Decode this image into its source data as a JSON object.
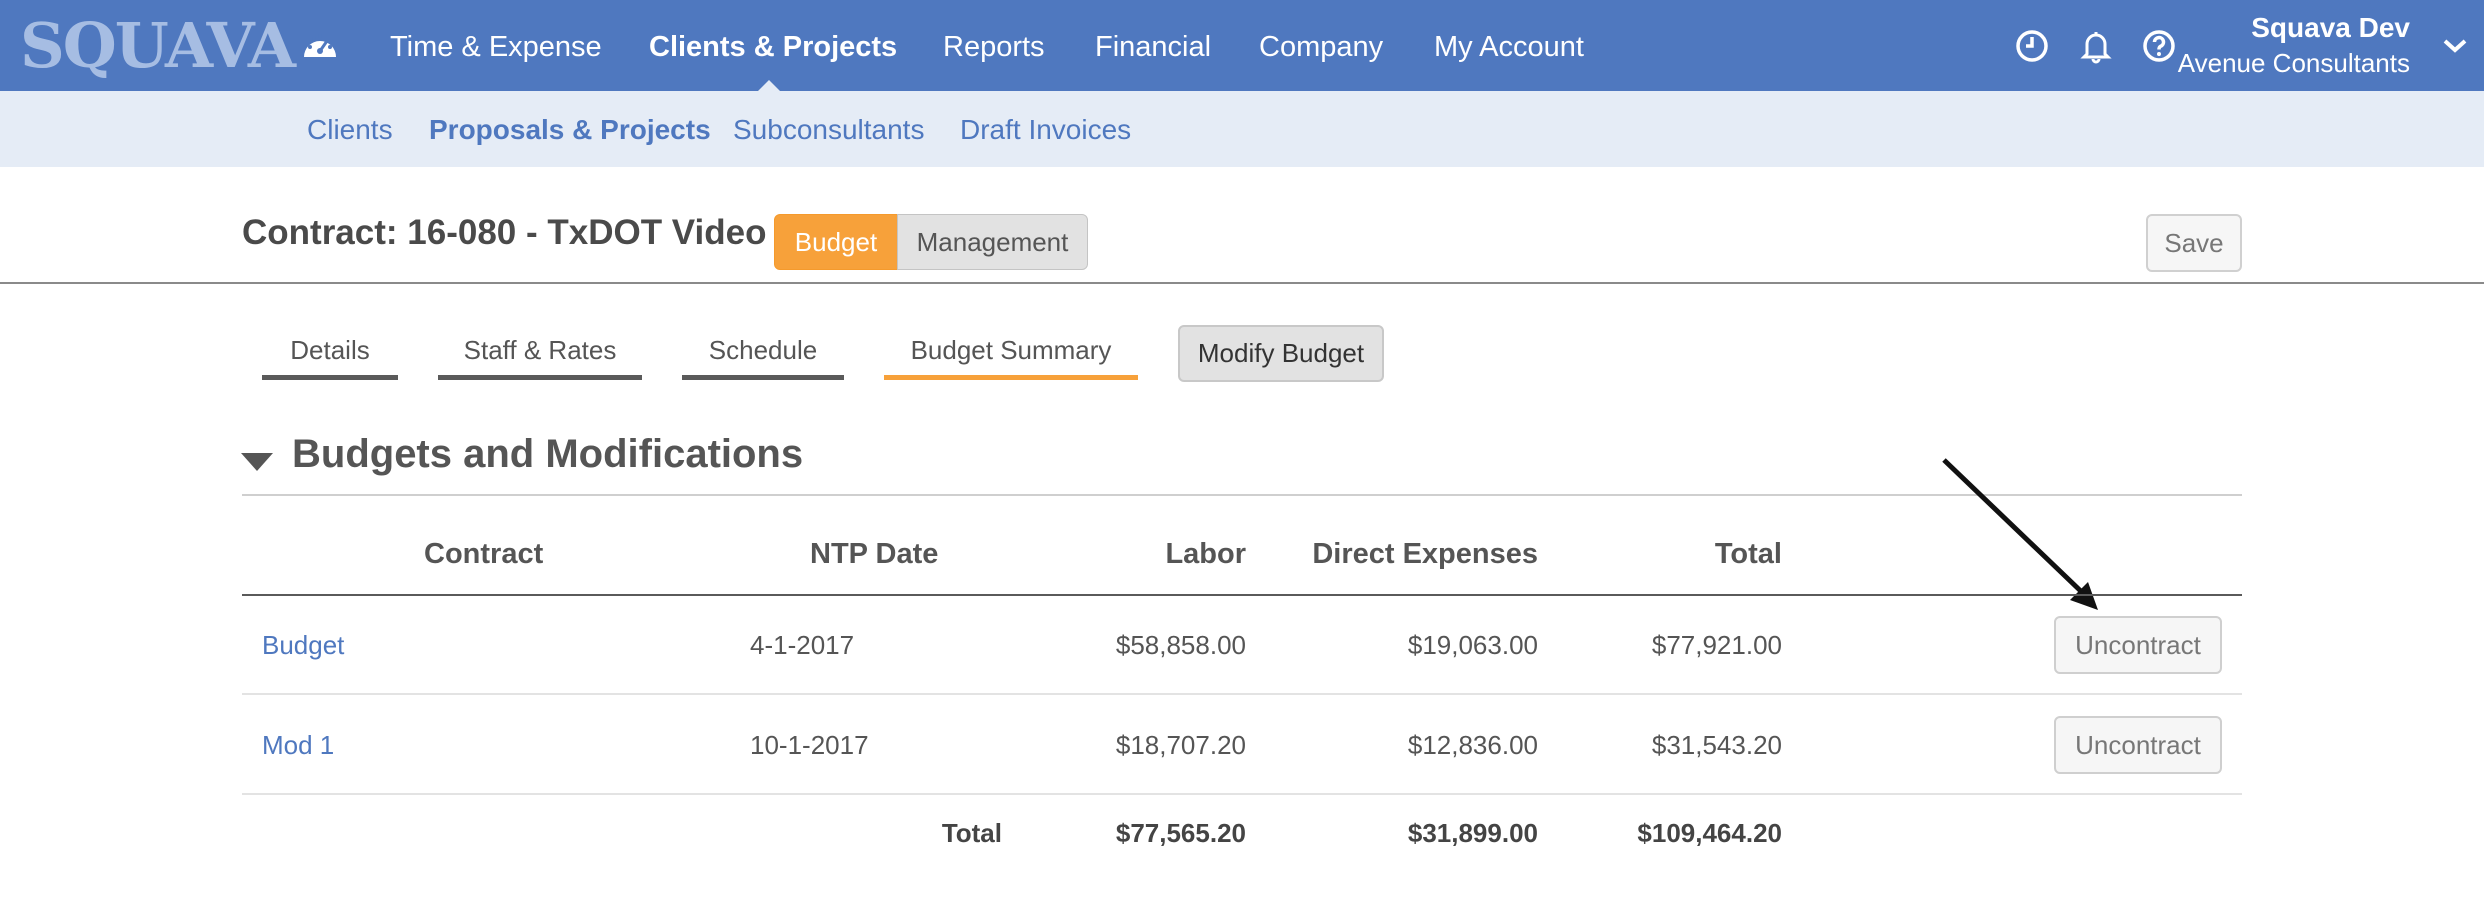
{
  "topnav": {
    "logo": "SQUAVA",
    "items": [
      {
        "label": "Time & Expense"
      },
      {
        "label": "Clients & Projects"
      },
      {
        "label": "Reports"
      },
      {
        "label": "Financial"
      },
      {
        "label": "Company"
      },
      {
        "label": "My Account"
      }
    ],
    "active": "Clients & Projects",
    "icons": [
      "dashboard-icon",
      "clock-icon",
      "bell-icon",
      "help-icon",
      "chevron-down-icon"
    ],
    "user": {
      "name": "Squava Dev",
      "company": "Avenue Consultants"
    }
  },
  "subnav": {
    "items": [
      {
        "label": "Clients"
      },
      {
        "label": "Proposals & Projects"
      },
      {
        "label": "Subconsultants"
      },
      {
        "label": "Draft Invoices"
      }
    ],
    "active": "Proposals & Projects"
  },
  "contract": {
    "title": "Contract: 16-080 - TxDOT Video",
    "toggle": {
      "budget": "Budget",
      "management": "Management",
      "selected": "Budget"
    },
    "save_label": "Save"
  },
  "tabs": {
    "items": [
      {
        "label": "Details"
      },
      {
        "label": "Staff & Rates"
      },
      {
        "label": "Schedule"
      },
      {
        "label": "Budget Summary"
      }
    ],
    "active": "Budget Summary",
    "modify_label": "Modify Budget"
  },
  "section": {
    "title": "Budgets and Modifications",
    "table": {
      "headers": {
        "contract": "Contract",
        "ntp_date": "NTP Date",
        "labor": "Labor",
        "direct_expenses": "Direct Expenses",
        "total": "Total"
      },
      "rows": [
        {
          "contract": "Budget",
          "ntp_date": "4-1-2017",
          "labor": "$58,858.00",
          "direct_expenses": "$19,063.00",
          "total": "$77,921.00",
          "action": "Uncontract"
        },
        {
          "contract": "Mod 1",
          "ntp_date": "10-1-2017",
          "labor": "$18,707.20",
          "direct_expenses": "$12,836.00",
          "total": "$31,543.20",
          "action": "Uncontract"
        }
      ],
      "totals": {
        "label": "Total",
        "labor": "$77,565.20",
        "direct_expenses": "$31,899.00",
        "total": "$109,464.20"
      }
    }
  },
  "colors": {
    "nav_blue": "#4f78bf",
    "subnav_bg": "#e5ecf6",
    "accent_orange": "#f7a13a",
    "link_blue": "#4f78bf"
  }
}
